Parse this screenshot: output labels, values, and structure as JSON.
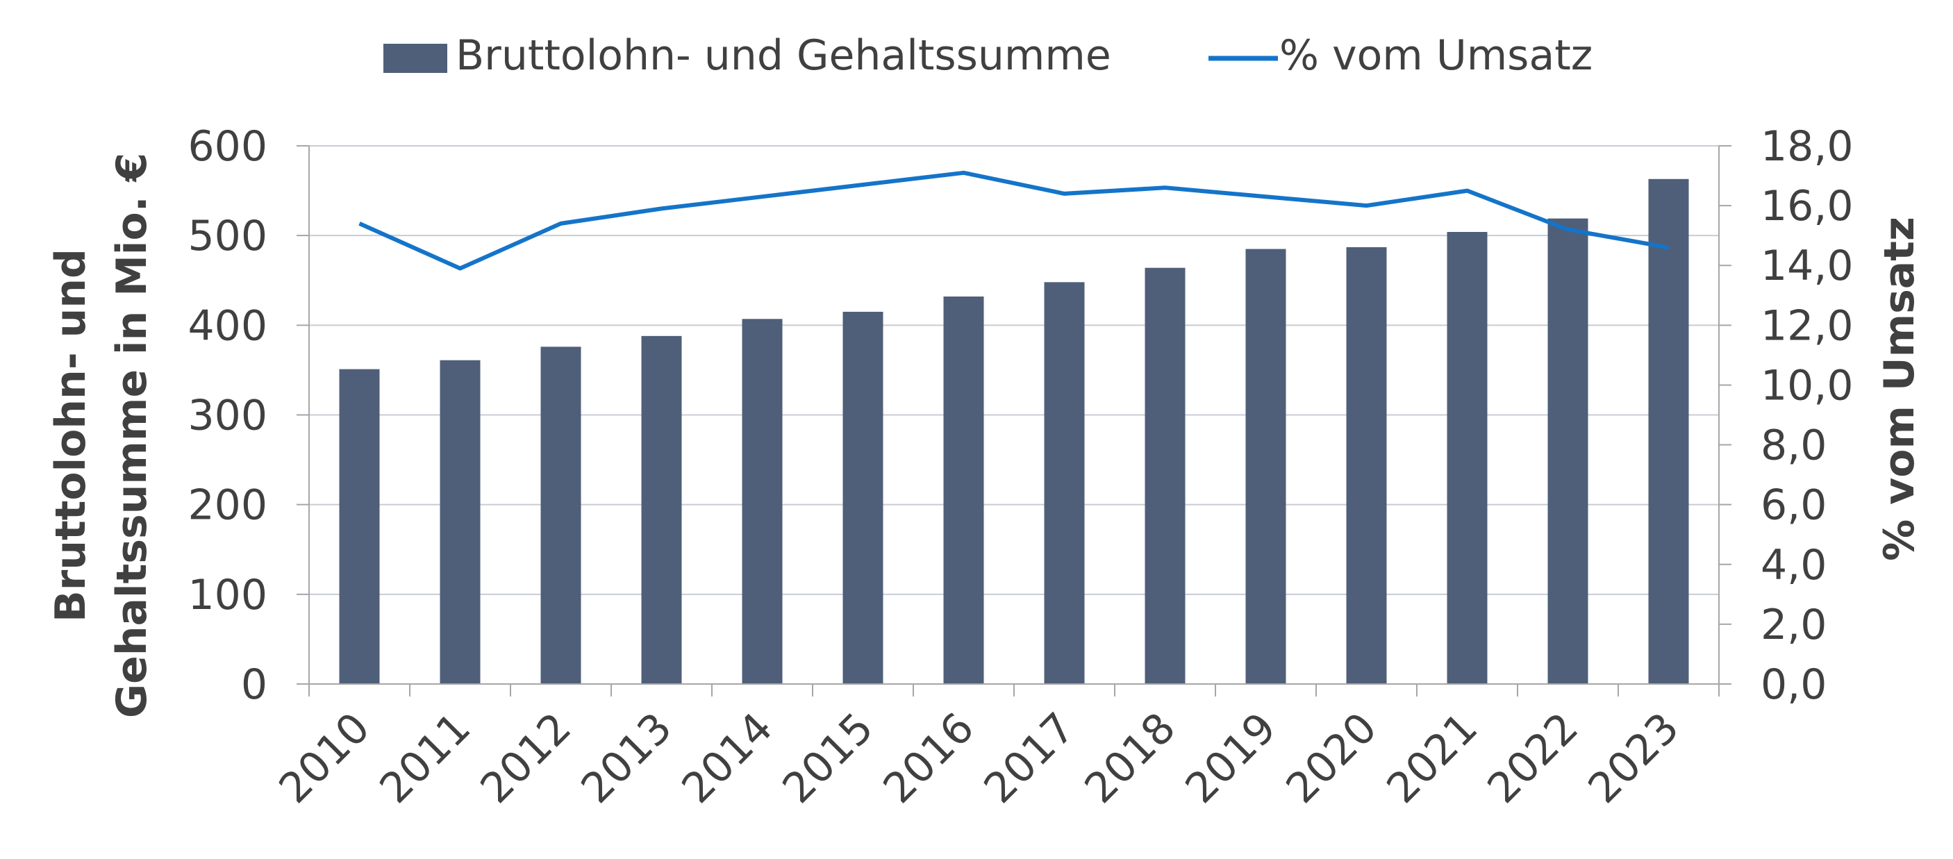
{
  "chart_data": {
    "type": "bar",
    "categories": [
      "2010",
      "2011",
      "2012",
      "2013",
      "2014",
      "2015",
      "2016",
      "2017",
      "2018",
      "2019",
      "2020",
      "2021",
      "2022",
      "2023"
    ],
    "series": [
      {
        "name": "Bruttolohn- und Gehaltssumme",
        "type": "bar",
        "axis": "left",
        "values": [
          351,
          361,
          376,
          388,
          407,
          415,
          432,
          448,
          464,
          485,
          487,
          504,
          519,
          563
        ]
      },
      {
        "name": "% vom Umsatz",
        "type": "line",
        "axis": "right",
        "values": [
          15.4,
          13.9,
          15.4,
          15.9,
          16.3,
          16.7,
          17.1,
          16.4,
          16.6,
          16.3,
          16.0,
          16.5,
          15.2,
          14.6
        ]
      }
    ],
    "ylabel": "Bruttolohn- und Gehaltssumme in Mio. €",
    "ylabel_lines": [
      "Bruttolohn- und",
      "Gehaltssumme in Mio. €"
    ],
    "y2label": "% vom Umsatz",
    "ylim": [
      0,
      600
    ],
    "y2lim": [
      0,
      18
    ],
    "yticks": [
      "0",
      "100",
      "200",
      "300",
      "400",
      "500",
      "600"
    ],
    "y2ticks": [
      "0,0",
      "2,0",
      "4,0",
      "6,0",
      "8,0",
      "10,0",
      "12,0",
      "14,0",
      "16,0",
      "18,0"
    ],
    "grid": true,
    "legend_position": "top-center",
    "colors": {
      "bar": "#4f5f79",
      "line": "#1474c9",
      "grid": "#c8ccd4",
      "axis": "#a6a6a6",
      "text": "#404040"
    }
  }
}
